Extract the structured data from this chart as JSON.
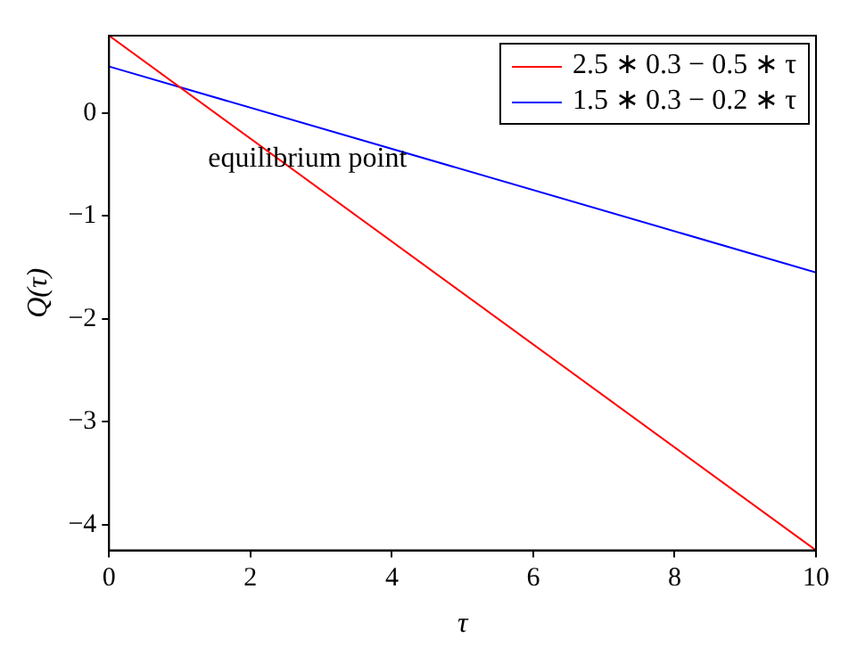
{
  "chart_data": {
    "type": "line",
    "xlabel": "τ",
    "ylabel": "Q(τ)",
    "x": [
      0,
      10
    ],
    "series": [
      {
        "name": "2.5 ∗ 0.3 − 0.5 ∗ τ",
        "color": "#ff0000",
        "values": [
          0.75,
          -4.25
        ]
      },
      {
        "name": "1.5 ∗ 0.3 − 0.2 ∗ τ",
        "color": "#0000ff",
        "values": [
          0.45,
          -1.55
        ]
      }
    ],
    "xlim": [
      0,
      10
    ],
    "xticks": [
      0,
      2,
      4,
      6,
      8,
      10
    ],
    "ylim": [
      -4.25,
      0.75
    ],
    "yticks": [
      -4,
      -3,
      -2,
      -1,
      0
    ],
    "grid": false,
    "legend": "top right",
    "marker": "none",
    "line_style": "solid",
    "annotations": [
      "equilibrium point"
    ]
  }
}
